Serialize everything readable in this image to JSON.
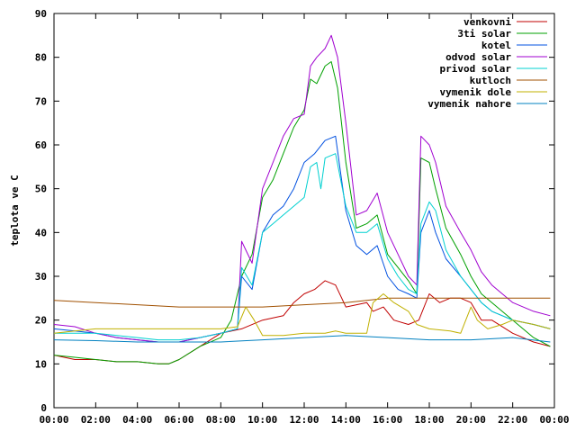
{
  "chart_data": {
    "type": "line",
    "ylabel": "teplota ve C",
    "xlabel": "",
    "ylim": [
      0,
      90
    ],
    "y_ticks": [
      "0",
      "10",
      "20",
      "30",
      "40",
      "50",
      "60",
      "70",
      "80",
      "90"
    ],
    "x_range_hours": [
      0,
      24
    ],
    "x_ticks": [
      "00:00",
      "02:00",
      "04:00",
      "06:00",
      "08:00",
      "10:00",
      "12:00",
      "14:00",
      "16:00",
      "18:00",
      "20:00",
      "22:00",
      "00:00"
    ],
    "legend_position": "top-right",
    "grid": false,
    "series": [
      {
        "name": "venkovni",
        "color": "#c00000",
        "points": [
          [
            0,
            12
          ],
          [
            1,
            11
          ],
          [
            2,
            11
          ],
          [
            3,
            10.5
          ],
          [
            4,
            10.5
          ],
          [
            5,
            10
          ],
          [
            5.5,
            10
          ],
          [
            6,
            11
          ],
          [
            7,
            14
          ],
          [
            8,
            17
          ],
          [
            9,
            18
          ],
          [
            10,
            20
          ],
          [
            11,
            21
          ],
          [
            11.5,
            24
          ],
          [
            12,
            26
          ],
          [
            12.5,
            27
          ],
          [
            13,
            29
          ],
          [
            13.5,
            28
          ],
          [
            13.8,
            25
          ],
          [
            14,
            23
          ],
          [
            15,
            24
          ],
          [
            15.3,
            22
          ],
          [
            15.8,
            23
          ],
          [
            16.3,
            20
          ],
          [
            17,
            19
          ],
          [
            17.5,
            20
          ],
          [
            18,
            26
          ],
          [
            18.5,
            24
          ],
          [
            19,
            25
          ],
          [
            19.5,
            25
          ],
          [
            20,
            24
          ],
          [
            20.5,
            20
          ],
          [
            21,
            20
          ],
          [
            22,
            17
          ],
          [
            23,
            15
          ],
          [
            23.8,
            14
          ]
        ]
      },
      {
        "name": "3ti solar",
        "color": "#00a000",
        "points": [
          [
            0,
            12
          ],
          [
            1,
            11.5
          ],
          [
            2,
            11
          ],
          [
            3,
            10.5
          ],
          [
            4,
            10.5
          ],
          [
            5,
            10
          ],
          [
            5.5,
            10
          ],
          [
            6,
            11
          ],
          [
            7,
            14
          ],
          [
            8,
            16
          ],
          [
            8.5,
            20
          ],
          [
            9,
            30
          ],
          [
            9.5,
            35
          ],
          [
            10,
            48
          ],
          [
            10.5,
            52
          ],
          [
            11,
            58
          ],
          [
            11.5,
            64
          ],
          [
            12,
            68
          ],
          [
            12.3,
            75
          ],
          [
            12.6,
            74
          ],
          [
            13,
            78
          ],
          [
            13.3,
            79
          ],
          [
            13.6,
            73
          ],
          [
            14,
            56
          ],
          [
            14.5,
            41
          ],
          [
            15,
            42
          ],
          [
            15.5,
            44
          ],
          [
            16,
            35
          ],
          [
            16.5,
            32
          ],
          [
            17,
            29
          ],
          [
            17.4,
            26
          ],
          [
            17.6,
            57
          ],
          [
            18,
            56
          ],
          [
            18.3,
            50
          ],
          [
            18.8,
            41
          ],
          [
            19.5,
            35
          ],
          [
            20,
            30
          ],
          [
            20.5,
            26
          ],
          [
            21,
            24
          ],
          [
            22,
            20
          ],
          [
            23,
            16
          ],
          [
            23.8,
            14
          ]
        ]
      },
      {
        "name": "kotel",
        "color": "#0050e0",
        "points": [
          [
            0,
            18
          ],
          [
            1,
            17.5
          ],
          [
            2,
            17
          ],
          [
            3,
            16
          ],
          [
            4,
            15.5
          ],
          [
            5,
            15
          ],
          [
            6,
            15
          ],
          [
            7,
            16
          ],
          [
            8,
            17
          ],
          [
            8.8,
            18
          ],
          [
            9,
            30
          ],
          [
            9.5,
            27
          ],
          [
            10,
            40
          ],
          [
            10.5,
            44
          ],
          [
            11,
            46
          ],
          [
            11.5,
            50
          ],
          [
            12,
            56
          ],
          [
            12.5,
            58
          ],
          [
            13,
            61
          ],
          [
            13.5,
            62
          ],
          [
            14,
            45
          ],
          [
            14.5,
            37
          ],
          [
            15,
            35
          ],
          [
            15.5,
            37
          ],
          [
            16,
            30
          ],
          [
            16.5,
            27
          ],
          [
            17,
            26
          ],
          [
            17.4,
            25
          ],
          [
            17.6,
            40
          ],
          [
            18,
            45
          ],
          [
            18.3,
            40
          ],
          [
            18.8,
            34
          ],
          [
            19.5,
            30
          ],
          [
            20,
            27
          ],
          [
            20.5,
            24
          ],
          [
            21,
            22
          ],
          [
            22,
            20
          ],
          [
            23,
            19
          ],
          [
            23.8,
            18
          ]
        ]
      },
      {
        "name": "odvod solar",
        "color": "#a000d0",
        "points": [
          [
            0,
            19
          ],
          [
            1,
            18.5
          ],
          [
            2,
            17
          ],
          [
            3,
            16
          ],
          [
            4,
            15.5
          ],
          [
            5,
            15
          ],
          [
            6,
            15
          ],
          [
            7,
            16
          ],
          [
            8,
            17
          ],
          [
            8.8,
            18
          ],
          [
            9,
            38
          ],
          [
            9.5,
            33
          ],
          [
            10,
            50
          ],
          [
            10.5,
            56
          ],
          [
            11,
            62
          ],
          [
            11.5,
            66
          ],
          [
            12,
            67
          ],
          [
            12.3,
            78
          ],
          [
            12.6,
            80
          ],
          [
            13,
            82
          ],
          [
            13.3,
            85
          ],
          [
            13.6,
            80
          ],
          [
            14,
            65
          ],
          [
            14.5,
            44
          ],
          [
            15,
            45
          ],
          [
            15.5,
            49
          ],
          [
            16,
            40
          ],
          [
            16.5,
            35
          ],
          [
            17,
            30
          ],
          [
            17.4,
            28
          ],
          [
            17.6,
            62
          ],
          [
            18,
            60
          ],
          [
            18.3,
            56
          ],
          [
            18.8,
            46
          ],
          [
            19.5,
            40
          ],
          [
            20,
            36
          ],
          [
            20.5,
            31
          ],
          [
            21,
            28
          ],
          [
            22,
            24
          ],
          [
            23,
            22
          ],
          [
            23.8,
            21
          ]
        ]
      },
      {
        "name": "privod solar",
        "color": "#00d0d0",
        "points": [
          [
            0,
            17
          ],
          [
            1,
            17
          ],
          [
            2,
            17
          ],
          [
            3,
            16.5
          ],
          [
            4,
            16
          ],
          [
            5,
            15.5
          ],
          [
            6,
            15.5
          ],
          [
            7,
            16
          ],
          [
            8,
            17
          ],
          [
            8.8,
            18
          ],
          [
            9,
            32
          ],
          [
            9.5,
            28
          ],
          [
            10,
            40
          ],
          [
            10.5,
            42
          ],
          [
            11,
            44
          ],
          [
            11.5,
            46
          ],
          [
            12,
            48
          ],
          [
            12.3,
            55
          ],
          [
            12.6,
            56
          ],
          [
            12.8,
            50
          ],
          [
            13,
            57
          ],
          [
            13.5,
            58
          ],
          [
            14,
            46
          ],
          [
            14.5,
            40
          ],
          [
            15,
            40
          ],
          [
            15.5,
            42
          ],
          [
            16,
            34
          ],
          [
            16.5,
            30
          ],
          [
            17,
            27
          ],
          [
            17.4,
            26
          ],
          [
            17.6,
            42
          ],
          [
            18,
            47
          ],
          [
            18.3,
            45
          ],
          [
            18.8,
            36
          ],
          [
            19.5,
            30
          ],
          [
            20,
            27
          ],
          [
            20.5,
            24
          ],
          [
            21,
            22
          ],
          [
            22,
            20
          ],
          [
            23,
            19
          ],
          [
            23.8,
            18
          ]
        ]
      },
      {
        "name": "kutloch",
        "color": "#a05000",
        "points": [
          [
            0,
            24.5
          ],
          [
            2,
            24
          ],
          [
            4,
            23.5
          ],
          [
            6,
            23
          ],
          [
            8,
            23
          ],
          [
            10,
            23
          ],
          [
            12,
            23.5
          ],
          [
            14,
            24
          ],
          [
            16,
            25
          ],
          [
            18,
            25
          ],
          [
            20,
            25
          ],
          [
            22,
            25
          ],
          [
            23.8,
            25
          ]
        ]
      },
      {
        "name": "vymenik dole",
        "color": "#c0b000",
        "points": [
          [
            0,
            17
          ],
          [
            1,
            17.5
          ],
          [
            2,
            18
          ],
          [
            3,
            18
          ],
          [
            4,
            18
          ],
          [
            5,
            18
          ],
          [
            6,
            18
          ],
          [
            7,
            18
          ],
          [
            8,
            18
          ],
          [
            8.8,
            18.5
          ],
          [
            9.2,
            23
          ],
          [
            9.6,
            20
          ],
          [
            10,
            16.5
          ],
          [
            11,
            16.5
          ],
          [
            12,
            17
          ],
          [
            13,
            17
          ],
          [
            13.5,
            17.5
          ],
          [
            14,
            17
          ],
          [
            15,
            17
          ],
          [
            15.3,
            24
          ],
          [
            15.8,
            26
          ],
          [
            16.3,
            24
          ],
          [
            17,
            22
          ],
          [
            17.4,
            19
          ],
          [
            18,
            18
          ],
          [
            19,
            17.5
          ],
          [
            19.5,
            17
          ],
          [
            20,
            23
          ],
          [
            20.3,
            20
          ],
          [
            20.8,
            18
          ],
          [
            21.5,
            19
          ],
          [
            22,
            20
          ],
          [
            23,
            19
          ],
          [
            23.8,
            18
          ]
        ]
      },
      {
        "name": "vymenik nahore",
        "color": "#0080c0",
        "points": [
          [
            0,
            15.5
          ],
          [
            2,
            15.3
          ],
          [
            4,
            15
          ],
          [
            6,
            15
          ],
          [
            8,
            15
          ],
          [
            10,
            15.5
          ],
          [
            12,
            16
          ],
          [
            14,
            16.5
          ],
          [
            16,
            16
          ],
          [
            18,
            15.5
          ],
          [
            20,
            15.5
          ],
          [
            22,
            16
          ],
          [
            23.8,
            15
          ]
        ]
      }
    ]
  }
}
